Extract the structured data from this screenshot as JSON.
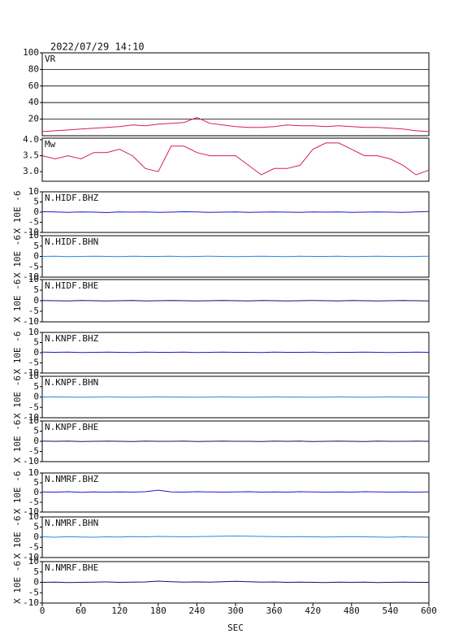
{
  "chart_data": {
    "type": "line",
    "title": "2022/07/29 14:10",
    "xlabel": "SEC",
    "ylabel": "X 10E -6",
    "xlim": [
      0,
      600
    ],
    "xticks": [
      0,
      60,
      120,
      180,
      240,
      300,
      360,
      420,
      480,
      540,
      600
    ],
    "x": [
      0,
      20,
      40,
      60,
      80,
      100,
      120,
      140,
      160,
      180,
      200,
      220,
      240,
      260,
      280,
      300,
      320,
      340,
      360,
      380,
      400,
      420,
      440,
      460,
      480,
      500,
      520,
      540,
      560,
      580,
      600
    ],
    "series": [
      {
        "name": "VR",
        "color": "#d81e4a",
        "ylim": [
          0,
          100
        ],
        "yticks": [
          20,
          40,
          60,
          80,
          100
        ],
        "grid": true,
        "values": [
          5,
          6,
          7,
          8,
          9,
          10,
          11,
          13,
          12,
          14,
          15,
          16,
          22,
          15,
          13,
          11,
          10,
          10,
          11,
          13,
          12,
          12,
          11,
          12,
          11,
          10,
          10,
          9,
          8,
          6,
          5
        ]
      },
      {
        "name": "Mw",
        "color": "#d81e4a",
        "ylim": [
          2.7,
          4.05
        ],
        "yticks": [
          {
            "value": 3,
            "label": "3.0"
          },
          {
            "value": 3.5,
            "label": "3.5"
          },
          {
            "value": 4,
            "label": "4.0"
          }
        ],
        "grid": false,
        "values": [
          3.5,
          3.4,
          3.5,
          3.4,
          3.6,
          3.6,
          3.7,
          3.5,
          3.1,
          3.0,
          3.8,
          3.8,
          3.6,
          3.5,
          3.5,
          3.5,
          3.2,
          2.9,
          3.1,
          3.1,
          3.2,
          3.7,
          3.9,
          3.9,
          3.7,
          3.5,
          3.5,
          3.4,
          3.2,
          2.9,
          3.05
        ]
      },
      {
        "name": "N.HIDF.BHZ",
        "color": "#1a1ad0",
        "ylim": [
          -10,
          10
        ],
        "yticks": [
          10,
          5,
          0,
          -5,
          -10
        ],
        "grid": false,
        "values": [
          0.2,
          0.1,
          -0.1,
          0.1,
          0,
          -0.2,
          0.1,
          0,
          0.1,
          -0.1,
          0,
          0.2,
          0.1,
          -0.1,
          0,
          0.1,
          -0.1,
          0,
          0.1,
          0,
          -0.1,
          0.1,
          0,
          0.1,
          -0.1,
          0,
          0.1,
          0,
          -0.1,
          0.1,
          0.3
        ]
      },
      {
        "name": "N.HIDF.BHN",
        "color": "#2a88e0",
        "ylim": [
          -10,
          10
        ],
        "yticks": [
          10,
          5,
          0,
          -5,
          -10
        ],
        "grid": false,
        "values": [
          0,
          0.1,
          -0.1,
          0,
          0.1,
          0,
          -0.1,
          0.1,
          0,
          0,
          0.1,
          -0.1,
          0,
          0.1,
          0,
          -0.1,
          0,
          0.1,
          0,
          -0.1,
          0.1,
          0,
          0,
          0.1,
          -0.1,
          0,
          0.1,
          0,
          -0.1,
          0,
          0.1
        ]
      },
      {
        "name": "N.HIDF.BHE",
        "color": "#101070",
        "ylim": [
          -10,
          10
        ],
        "yticks": [
          10,
          5,
          0,
          -5,
          -10
        ],
        "grid": false,
        "values": [
          0.1,
          0,
          -0.1,
          0.1,
          0,
          -0.1,
          0,
          0.1,
          -0.1,
          0,
          0.1,
          0,
          -0.1,
          0,
          0.1,
          0,
          -0.1,
          0.1,
          0,
          -0.1,
          0,
          0.1,
          0,
          -0.1,
          0.1,
          0,
          -0.1,
          0,
          0.1,
          0,
          -0.1
        ]
      },
      {
        "name": "N.KNPF.BHZ",
        "color": "#1a1ad0",
        "ylim": [
          -10,
          10
        ],
        "yticks": [
          10,
          5,
          0,
          -5,
          -10
        ],
        "grid": false,
        "values": [
          0.3,
          0.2,
          0.3,
          0.1,
          0.2,
          0.3,
          0.2,
          0.1,
          0.3,
          0.2,
          0.2,
          0.3,
          0.1,
          0.2,
          0.3,
          0.2,
          0.2,
          0.1,
          0.3,
          0.2,
          0.2,
          0.3,
          0.1,
          0.2,
          0.2,
          0.3,
          0.2,
          0.1,
          0.2,
          0.3,
          0.2
        ]
      },
      {
        "name": "N.KNPF.BHN",
        "color": "#2a88e0",
        "ylim": [
          -10,
          10
        ],
        "yticks": [
          10,
          5,
          0,
          -5,
          -10
        ],
        "grid": false,
        "values": [
          0,
          0.1,
          0,
          -0.1,
          0,
          0.1,
          0,
          -0.1,
          0,
          0.1,
          0,
          0,
          -0.1,
          0,
          0.1,
          0,
          -0.1,
          0,
          0.1,
          0,
          0,
          -0.1,
          0,
          0.1,
          0,
          -0.1,
          0,
          0.1,
          0,
          0,
          -0.1
        ]
      },
      {
        "name": "N.KNPF.BHE",
        "color": "#101070",
        "ylim": [
          -10,
          10
        ],
        "yticks": [
          10,
          5,
          0,
          -5,
          -10
        ],
        "grid": false,
        "values": [
          0.1,
          0,
          0.1,
          -0.1,
          0,
          0.1,
          0,
          -0.1,
          0.1,
          0,
          0,
          0.1,
          -0.1,
          0,
          0.1,
          0,
          0,
          -0.1,
          0.1,
          0,
          0.1,
          -0.1,
          0,
          0.1,
          0,
          -0.1,
          0.1,
          0,
          0,
          0.1,
          0
        ]
      },
      {
        "name": "N.NMRF.BHZ",
        "color": "#1a1ad0",
        "ylim": [
          -10,
          10
        ],
        "yticks": [
          10,
          5,
          0,
          -5,
          -10
        ],
        "grid": false,
        "values": [
          0.3,
          0.2,
          0.4,
          0.1,
          0.3,
          0.2,
          0.3,
          0.2,
          0.4,
          1.2,
          0.3,
          0.2,
          0.4,
          0.3,
          0.2,
          0.3,
          0.4,
          0.2,
          0.3,
          0.2,
          0.4,
          0.3,
          0.2,
          0.3,
          0.2,
          0.4,
          0.3,
          0.2,
          0.3,
          0.2,
          0.3
        ]
      },
      {
        "name": "N.NMRF.BHN",
        "color": "#2a88e0",
        "ylim": [
          -10,
          10
        ],
        "yticks": [
          10,
          5,
          0,
          -5,
          -10
        ],
        "grid": false,
        "values": [
          0.2,
          0,
          0.3,
          0.1,
          0,
          0.2,
          0.1,
          0.3,
          0.2,
          0.4,
          0.3,
          0.2,
          0.3,
          0.4,
          0.5,
          0.6,
          0.5,
          0.4,
          0.3,
          0.2,
          0.3,
          0.2,
          0.1,
          0.2,
          0.3,
          0.2,
          0.1,
          0,
          0.2,
          0.1,
          0
        ]
      },
      {
        "name": "N.NMRF.BHE",
        "color": "#101070",
        "ylim": [
          -10,
          10
        ],
        "yticks": [
          10,
          5,
          0,
          -5,
          -10
        ],
        "grid": false,
        "values": [
          0,
          0.1,
          -0.1,
          0,
          0.1,
          0.2,
          0,
          0.1,
          0.2,
          0.6,
          0.3,
          0.1,
          0.2,
          0.1,
          0.3,
          0.5,
          0.3,
          0.1,
          0.2,
          0,
          0.1,
          0,
          -0.1,
          0.1,
          0,
          0.1,
          -0.1,
          0,
          0.1,
          0,
          0
        ]
      }
    ]
  }
}
